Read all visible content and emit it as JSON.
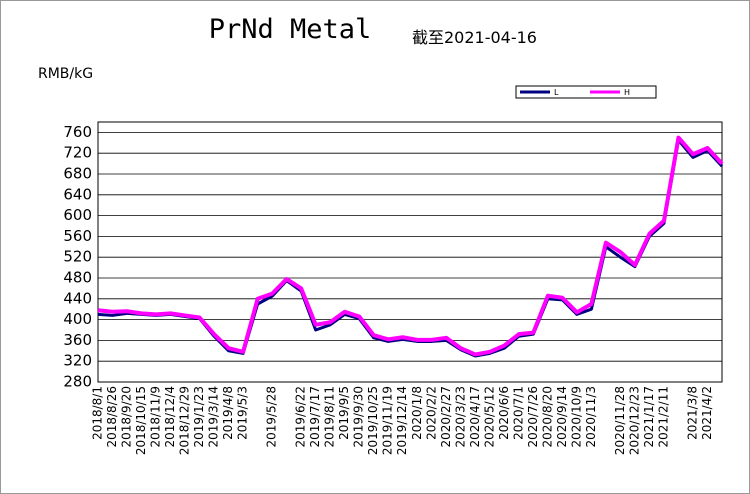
{
  "chart_data": {
    "type": "line",
    "title": "PrNd Metal",
    "subtitle": "截至2021-04-16",
    "y_label": "RMB/kG",
    "categories": [
      "2018/8/1",
      "2018/8/26",
      "2018/9/20",
      "2018/10/15",
      "2018/11/9",
      "2018/12/4",
      "2018/12/29",
      "2019/1/23",
      "2019/3/14",
      "2019/4/8",
      "2019/5/3",
      null,
      "2019/5/28",
      null,
      "2019/6/22",
      "2019/7/17",
      "2019/8/11",
      "2019/9/5",
      "2019/9/30",
      "2019/10/25",
      "2019/11/19",
      "2019/12/14",
      "2020/1/8",
      "2020/2/2",
      "2020/2/27",
      "2020/3/23",
      "2020/4/17",
      "2020/5/12",
      "2020/6/6",
      "2020/7/1",
      "2020/7/26",
      "2020/8/20",
      "2020/9/14",
      "2020/10/9",
      "2020/11/3",
      null,
      "2020/11/28",
      "2020/12/23",
      "2021/1/17",
      "2021/2/11",
      null,
      "2021/3/8",
      "2021/4/2",
      null
    ],
    "series": [
      {
        "name": "L",
        "color": "#000080",
        "values": [
          410,
          408,
          412,
          410,
          408,
          410,
          406,
          402,
          368,
          340,
          335,
          430,
          445,
          475,
          455,
          380,
          390,
          410,
          402,
          365,
          358,
          362,
          358,
          358,
          360,
          342,
          330,
          335,
          345,
          368,
          372,
          440,
          438,
          410,
          420,
          540,
          520,
          502,
          560,
          585,
          745,
          712,
          725,
          695
        ]
      },
      {
        "name": "H",
        "color": "#ff00ff",
        "values": [
          418,
          415,
          416,
          412,
          410,
          412,
          408,
          404,
          372,
          345,
          338,
          440,
          450,
          478,
          460,
          390,
          395,
          415,
          406,
          370,
          362,
          366,
          361,
          361,
          365,
          345,
          333,
          338,
          350,
          372,
          375,
          446,
          442,
          414,
          430,
          548,
          530,
          505,
          565,
          590,
          750,
          718,
          730,
          700
        ]
      }
    ],
    "ylim": [
      280,
      780
    ],
    "yticks": [
      280,
      320,
      360,
      400,
      440,
      480,
      520,
      560,
      600,
      640,
      680,
      720,
      760
    ],
    "grid": true
  }
}
